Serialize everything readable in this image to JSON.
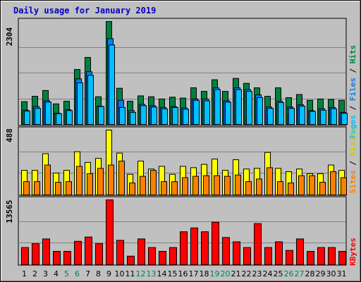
{
  "title": "Daily usage for January 2019",
  "colors": {
    "background": "#c0c0c0",
    "title": "#0000c0",
    "hits": "#008040",
    "files": "#0080ff",
    "pages": "#00c0ff",
    "visits": "#ffff00",
    "sites": "#ff8000",
    "kbytes": "#ff0000",
    "weekend_day": "#00805c",
    "weekday": "#000000",
    "grid": "#808080"
  },
  "legend_top": {
    "pages": "Pages",
    "sep1": " / ",
    "files": "Files",
    "sep2": " / ",
    "hits": "Hits"
  },
  "legend_mid": {
    "sites": "Sites",
    "sep": " / ",
    "visits": "Visits"
  },
  "legend_bottom": {
    "kbytes": "KBytes"
  },
  "chart_data": [
    {
      "type": "bar",
      "name": "hits-files-pages",
      "title": "Daily usage for January 2019",
      "max_label": "2304",
      "ylim": [
        0,
        2304
      ],
      "x": [
        1,
        2,
        3,
        4,
        5,
        6,
        7,
        8,
        9,
        10,
        11,
        12,
        13,
        14,
        15,
        16,
        17,
        18,
        19,
        20,
        21,
        22,
        23,
        24,
        25,
        26,
        27,
        28,
        29,
        30,
        31
      ],
      "series": [
        {
          "name": "Hits",
          "values": [
            510,
            630,
            760,
            460,
            520,
            1230,
            1500,
            620,
            2304,
            810,
            520,
            640,
            620,
            570,
            610,
            590,
            820,
            740,
            1000,
            740,
            1030,
            920,
            820,
            630,
            820,
            600,
            670,
            540,
            570,
            560,
            540
          ]
        },
        {
          "name": "Files",
          "values": [
            320,
            400,
            530,
            250,
            330,
            1020,
            1180,
            410,
            1920,
            540,
            310,
            450,
            420,
            380,
            400,
            370,
            570,
            570,
            820,
            530,
            820,
            780,
            660,
            390,
            520,
            390,
            440,
            310,
            350,
            380,
            270
          ]
        },
        {
          "name": "Pages",
          "values": [
            300,
            360,
            500,
            240,
            310,
            930,
            1100,
            400,
            1780,
            380,
            270,
            420,
            390,
            350,
            380,
            340,
            540,
            530,
            780,
            500,
            780,
            740,
            600,
            360,
            490,
            360,
            410,
            290,
            320,
            350,
            250
          ]
        }
      ]
    },
    {
      "type": "bar",
      "name": "visits-sites",
      "max_label": "488",
      "ylim": [
        0,
        488
      ],
      "x": [
        1,
        2,
        3,
        4,
        5,
        6,
        7,
        8,
        9,
        10,
        11,
        12,
        13,
        14,
        15,
        16,
        17,
        18,
        19,
        20,
        21,
        22,
        23,
        24,
        25,
        26,
        27,
        28,
        29,
        30,
        31
      ],
      "series": [
        {
          "name": "Visits",
          "values": [
            185,
            185,
            310,
            165,
            185,
            325,
            245,
            275,
            488,
            315,
            155,
            255,
            195,
            215,
            155,
            215,
            205,
            230,
            270,
            185,
            265,
            195,
            200,
            320,
            200,
            175,
            195,
            160,
            160,
            225,
            185
          ]
        },
        {
          "name": "Sites",
          "values": [
            100,
            100,
            225,
            95,
            100,
            215,
            160,
            200,
            225,
            255,
            90,
            140,
            185,
            100,
            100,
            130,
            140,
            145,
            145,
            140,
            150,
            100,
            120,
            205,
            100,
            90,
            145,
            145,
            95,
            175,
            130
          ]
        }
      ]
    },
    {
      "type": "bar",
      "name": "kbytes",
      "max_label": "13565",
      "ylim": [
        0,
        13565
      ],
      "x": [
        1,
        2,
        3,
        4,
        5,
        6,
        7,
        8,
        9,
        10,
        11,
        12,
        13,
        14,
        15,
        16,
        17,
        18,
        19,
        20,
        21,
        22,
        23,
        24,
        25,
        26,
        27,
        28,
        29,
        30,
        31
      ],
      "series": [
        {
          "name": "KBytes",
          "values": [
            3600,
            4400,
            5400,
            2800,
            2800,
            4900,
            5800,
            4400,
            13565,
            5100,
            1800,
            5400,
            3600,
            2800,
            3600,
            6900,
            7700,
            6900,
            8900,
            5700,
            4800,
            3600,
            8600,
            3600,
            4800,
            3000,
            5400,
            2800,
            3600,
            3600,
            2800
          ]
        }
      ]
    }
  ],
  "x_labels": [
    "1",
    "2",
    "3",
    "4",
    "5",
    "6",
    "7",
    "8",
    "9",
    "10",
    "11",
    "12",
    "13",
    "14",
    "15",
    "16",
    "17",
    "18",
    "19",
    "20",
    "21",
    "22",
    "23",
    "24",
    "25",
    "26",
    "27",
    "28",
    "29",
    "30",
    "31"
  ],
  "weekend_days": [
    5,
    6,
    12,
    13,
    19,
    20,
    26,
    27
  ]
}
